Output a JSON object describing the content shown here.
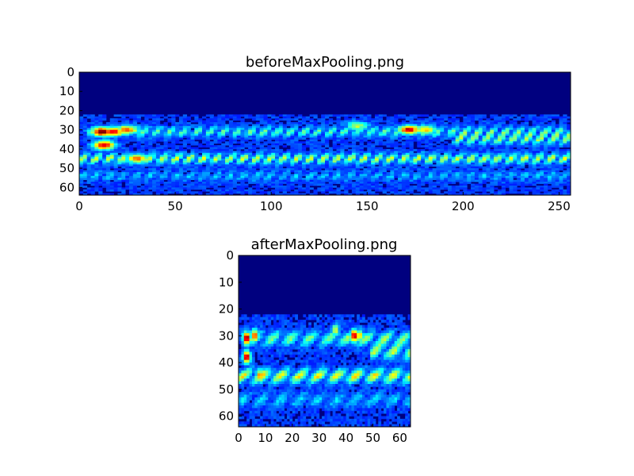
{
  "chart_data": [
    {
      "type": "heatmap",
      "title": "beforeMaxPooling.png",
      "xlabel": "",
      "ylabel": "",
      "xlim": [
        0,
        256
      ],
      "ylim": [
        64,
        0
      ],
      "grid": false,
      "colormap": "jet",
      "xticks": [
        0,
        50,
        100,
        150,
        200,
        250
      ],
      "yticks": [
        0,
        10,
        20,
        30,
        40,
        50,
        60
      ],
      "rows": 64,
      "cols": 256,
      "features": [
        {
          "kind": "band",
          "row": 31,
          "x_from": 5,
          "x_to": 256,
          "level": 0.35
        },
        {
          "kind": "band",
          "row": 35,
          "x_from": 195,
          "x_to": 256,
          "level": 0.4
        },
        {
          "kind": "band",
          "row": 45,
          "x_from": 0,
          "x_to": 256,
          "level": 0.5
        },
        {
          "kind": "band",
          "row": 54,
          "x_from": 0,
          "x_to": 256,
          "level": 0.18
        },
        {
          "kind": "hotspot",
          "x": 12,
          "y": 31,
          "value": 1.0
        },
        {
          "kind": "hotspot",
          "x": 18,
          "y": 31,
          "value": 0.85
        },
        {
          "kind": "hotspot",
          "x": 13,
          "y": 38,
          "value": 0.9
        },
        {
          "kind": "hotspot",
          "x": 25,
          "y": 30,
          "value": 0.75
        },
        {
          "kind": "hotspot",
          "x": 172,
          "y": 30,
          "value": 0.9
        },
        {
          "kind": "hotspot",
          "x": 180,
          "y": 30,
          "value": 0.6
        },
        {
          "kind": "hotspot",
          "x": 30,
          "y": 45,
          "value": 0.7
        },
        {
          "kind": "hotspot",
          "x": 145,
          "y": 28,
          "value": 0.45
        }
      ]
    },
    {
      "type": "heatmap",
      "title": "afterMaxPooling.png",
      "xlabel": "",
      "ylabel": "",
      "xlim": [
        0,
        64
      ],
      "ylim": [
        64,
        0
      ],
      "grid": false,
      "colormap": "jet",
      "xticks": [
        0,
        10,
        20,
        30,
        40,
        50,
        60
      ],
      "yticks": [
        0,
        10,
        20,
        30,
        40,
        50,
        60
      ],
      "rows": 64,
      "cols": 64,
      "features": [
        {
          "kind": "band",
          "row": 31,
          "x_from": 1,
          "x_to": 64,
          "level": 0.4
        },
        {
          "kind": "band",
          "row": 36,
          "x_from": 49,
          "x_to": 64,
          "level": 0.45
        },
        {
          "kind": "band",
          "row": 45,
          "x_from": 0,
          "x_to": 64,
          "level": 0.55
        },
        {
          "kind": "band",
          "row": 54,
          "x_from": 0,
          "x_to": 64,
          "level": 0.2
        },
        {
          "kind": "hotspot",
          "x": 3,
          "y": 31,
          "value": 1.0
        },
        {
          "kind": "hotspot",
          "x": 3,
          "y": 38,
          "value": 0.95
        },
        {
          "kind": "hotspot",
          "x": 6,
          "y": 30,
          "value": 0.8
        },
        {
          "kind": "hotspot",
          "x": 43,
          "y": 30,
          "value": 0.95
        },
        {
          "kind": "hotspot",
          "x": 45,
          "y": 30,
          "value": 0.6
        },
        {
          "kind": "hotspot",
          "x": 8,
          "y": 45,
          "value": 0.7
        },
        {
          "kind": "hotspot",
          "x": 36,
          "y": 28,
          "value": 0.5
        }
      ]
    }
  ]
}
